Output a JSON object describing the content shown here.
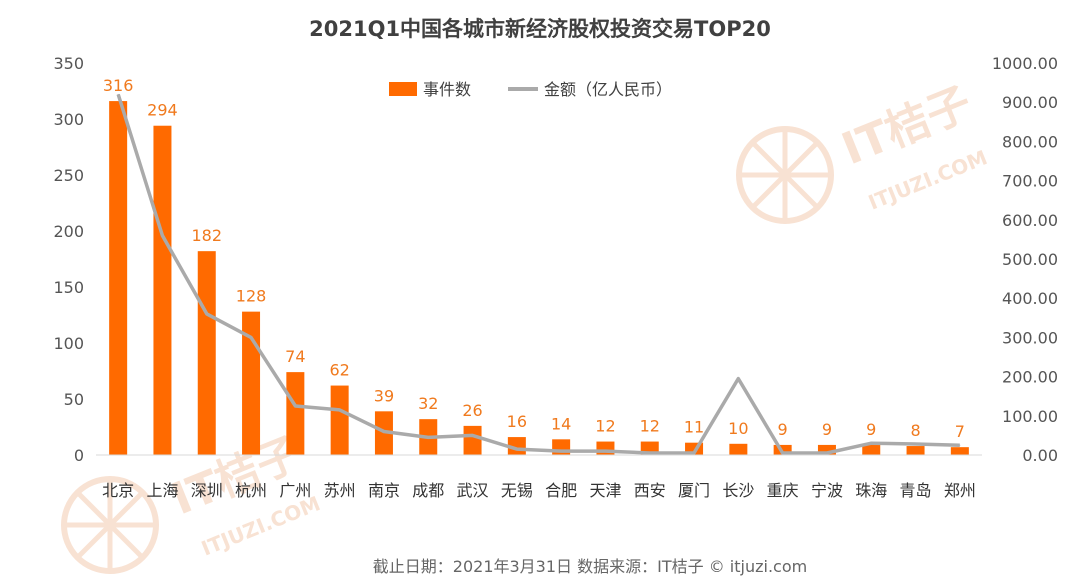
{
  "chart_data": {
    "type": "bar",
    "title": "2021Q1中国各城市新经济股权投资交易TOP20",
    "categories": [
      "北京",
      "上海",
      "深圳",
      "杭州",
      "广州",
      "苏州",
      "南京",
      "成都",
      "武汉",
      "无锡",
      "合肥",
      "天津",
      "西安",
      "厦门",
      "长沙",
      "重庆",
      "宁波",
      "珠海",
      "青岛",
      "郑州"
    ],
    "series": [
      {
        "name": "事件数",
        "type": "bar",
        "axis": "left",
        "color": "#FF6A00",
        "values": [
          316,
          294,
          182,
          128,
          74,
          62,
          39,
          32,
          26,
          16,
          14,
          12,
          12,
          11,
          10,
          9,
          9,
          9,
          8,
          7
        ]
      },
      {
        "name": "金额（亿人民币）",
        "type": "line",
        "axis": "right",
        "color": "#AAAAAA",
        "values": [
          920,
          560,
          360,
          300,
          125,
          115,
          60,
          45,
          50,
          15,
          10,
          10,
          5,
          5,
          195,
          5,
          5,
          30,
          28,
          25
        ]
      }
    ],
    "y_left": {
      "min": 0,
      "max": 350,
      "step": 50,
      "ticks": [
        "0",
        "50",
        "100",
        "150",
        "200",
        "250",
        "300",
        "350"
      ]
    },
    "y_right": {
      "min": 0,
      "max": 1000,
      "step": 100,
      "ticks": [
        "0.00",
        "100.00",
        "200.00",
        "300.00",
        "400.00",
        "500.00",
        "600.00",
        "700.00",
        "800.00",
        "900.00",
        "1000.00"
      ]
    },
    "grid": false,
    "legend_position": "top-center",
    "data_labels": [
      "316",
      "294",
      "182",
      "128",
      "74",
      "62",
      "39",
      "32",
      "26",
      "16",
      "14",
      "12",
      "12",
      "11",
      "10",
      "9",
      "9",
      "9",
      "8",
      "7"
    ]
  },
  "footer": "截止日期：2021年3月31日     数据来源：IT桔子 © itjuzi.com",
  "watermark": {
    "main": "IT桔子",
    "sub": "ITJUZI.COM"
  }
}
